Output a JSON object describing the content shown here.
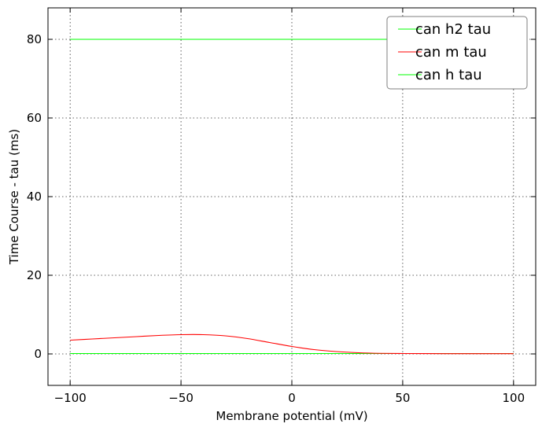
{
  "chart_data": {
    "type": "line",
    "title": "",
    "xlabel": "Membrane potential (mV)",
    "ylabel": "Time Course - tau (ms)",
    "xlim": [
      -110,
      110
    ],
    "ylim": [
      -8,
      88
    ],
    "xticks": [
      -100,
      -50,
      0,
      50,
      100
    ],
    "yticks": [
      0,
      20,
      40,
      60,
      80
    ],
    "xtick_labels": [
      "−100",
      "−50",
      "0",
      "50",
      "100"
    ],
    "ytick_labels": [
      "0",
      "20",
      "40",
      "60",
      "80"
    ],
    "grid": true,
    "legend_position": "top-right",
    "series": [
      {
        "name": "can h2 tau",
        "color": "#00ff00",
        "x": [
          -100,
          100
        ],
        "y": [
          80,
          80
        ]
      },
      {
        "name": "can m tau",
        "color": "#ff0000",
        "x": [
          -100,
          -90,
          -80,
          -70,
          -60,
          -50,
          -40,
          -30,
          -20,
          -10,
          0,
          10,
          20,
          30,
          40,
          50,
          60,
          70,
          80,
          90,
          100
        ],
        "y": [
          3.5,
          3.8,
          4.1,
          4.4,
          4.7,
          4.9,
          4.9,
          4.6,
          3.9,
          2.9,
          1.9,
          1.1,
          0.6,
          0.3,
          0.15,
          0.1,
          0.08,
          0.07,
          0.06,
          0.06,
          0.06
        ]
      },
      {
        "name": "can h tau",
        "color": "#00ff00",
        "x": [
          -100,
          100
        ],
        "y": [
          0.1,
          0.1
        ]
      }
    ]
  }
}
